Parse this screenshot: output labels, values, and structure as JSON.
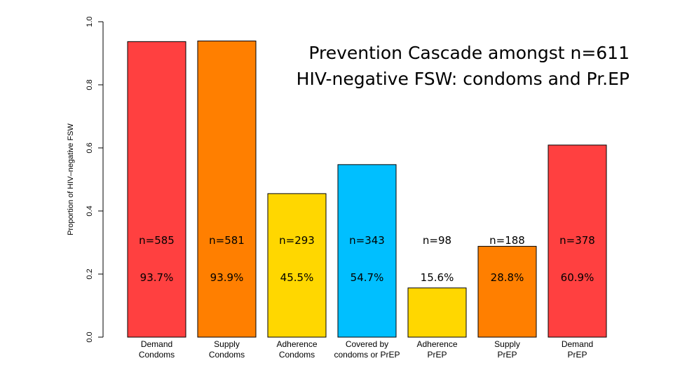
{
  "chart_data": {
    "type": "bar",
    "title_lines": [
      "Prevention Cascade amongst n=611",
      "HIV-negative FSW: condoms and Pr.EP"
    ],
    "ylabel": "Proportion of HIV–negative FSW",
    "ylim": [
      0,
      1.0
    ],
    "yticks": [
      "0.0",
      "0.2",
      "0.4",
      "0.6",
      "0.8",
      "1.0"
    ],
    "categories": [
      [
        "Demand",
        "Condoms"
      ],
      [
        "Supply",
        "Condoms"
      ],
      [
        "Adherence",
        "Condoms"
      ],
      [
        "Covered by",
        "condoms or PrEP"
      ],
      [
        "Adherence",
        "PrEP"
      ],
      [
        "Supply",
        "PrEP"
      ],
      [
        "Demand",
        "PrEP"
      ]
    ],
    "values": [
      0.937,
      0.939,
      0.455,
      0.547,
      0.156,
      0.288,
      0.609
    ],
    "counts": [
      "n=585",
      "n=581",
      "n=293",
      "n=343",
      "n=98",
      "n=188",
      "n=378"
    ],
    "percents": [
      "93.7%",
      "93.9%",
      "45.5%",
      "54.7%",
      "15.6%",
      "28.8%",
      "60.9%"
    ],
    "colors": [
      "#FF4040",
      "#FF7F00",
      "#FFD700",
      "#00BFFF",
      "#FFD700",
      "#FF7F00",
      "#FF4040"
    ]
  }
}
